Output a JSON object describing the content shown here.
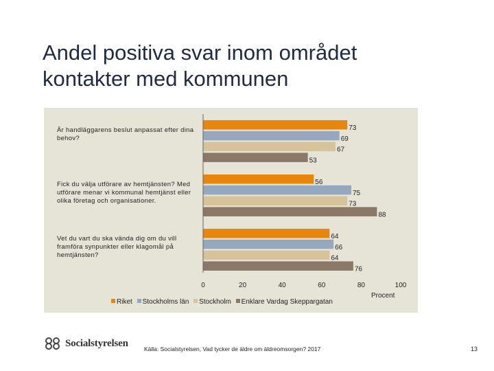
{
  "slide": {
    "title_line1": "Andel positiva svar inom området",
    "title_line2": "kontakter med kommunen",
    "source": "Källa: Socialstyrelsen, Vad tycker de äldre om äldreomsorgen? 2017",
    "page_number": "13",
    "logo_text": "Socialstyrelsen"
  },
  "colors": {
    "riket": "#e8860c",
    "stockholms_lan": "#94a9bf",
    "stockholm": "#d6c39a",
    "enklare": "#8b7765",
    "panel": "#e6e3d7"
  },
  "chart_data": {
    "type": "bar",
    "orientation": "horizontal",
    "categories": [
      "Är handläggarens beslut anpassat efter dina behov?",
      "Fick du välja utförare av hemtjänsten? Med utförare menar vi kommunal hemtjänst eller olika företag och organisationer.",
      "Vet du vart du ska vända dig om du vill framföra synpunkter eller klagomål på hemtjänsten?"
    ],
    "series": [
      {
        "name": "Riket",
        "values": [
          73,
          56,
          64
        ]
      },
      {
        "name": "Stockholms län",
        "values": [
          69,
          75,
          66
        ]
      },
      {
        "name": "Stockholm",
        "values": [
          67,
          73,
          64
        ]
      },
      {
        "name": "Enklare Vardag Skeppargatan",
        "values": [
          53,
          88,
          76
        ]
      }
    ],
    "xlim": [
      0,
      100
    ],
    "xticks": [
      "0",
      "20",
      "40",
      "60",
      "80",
      "100"
    ],
    "xlabel": "Procent",
    "legend_position": "bottom"
  }
}
